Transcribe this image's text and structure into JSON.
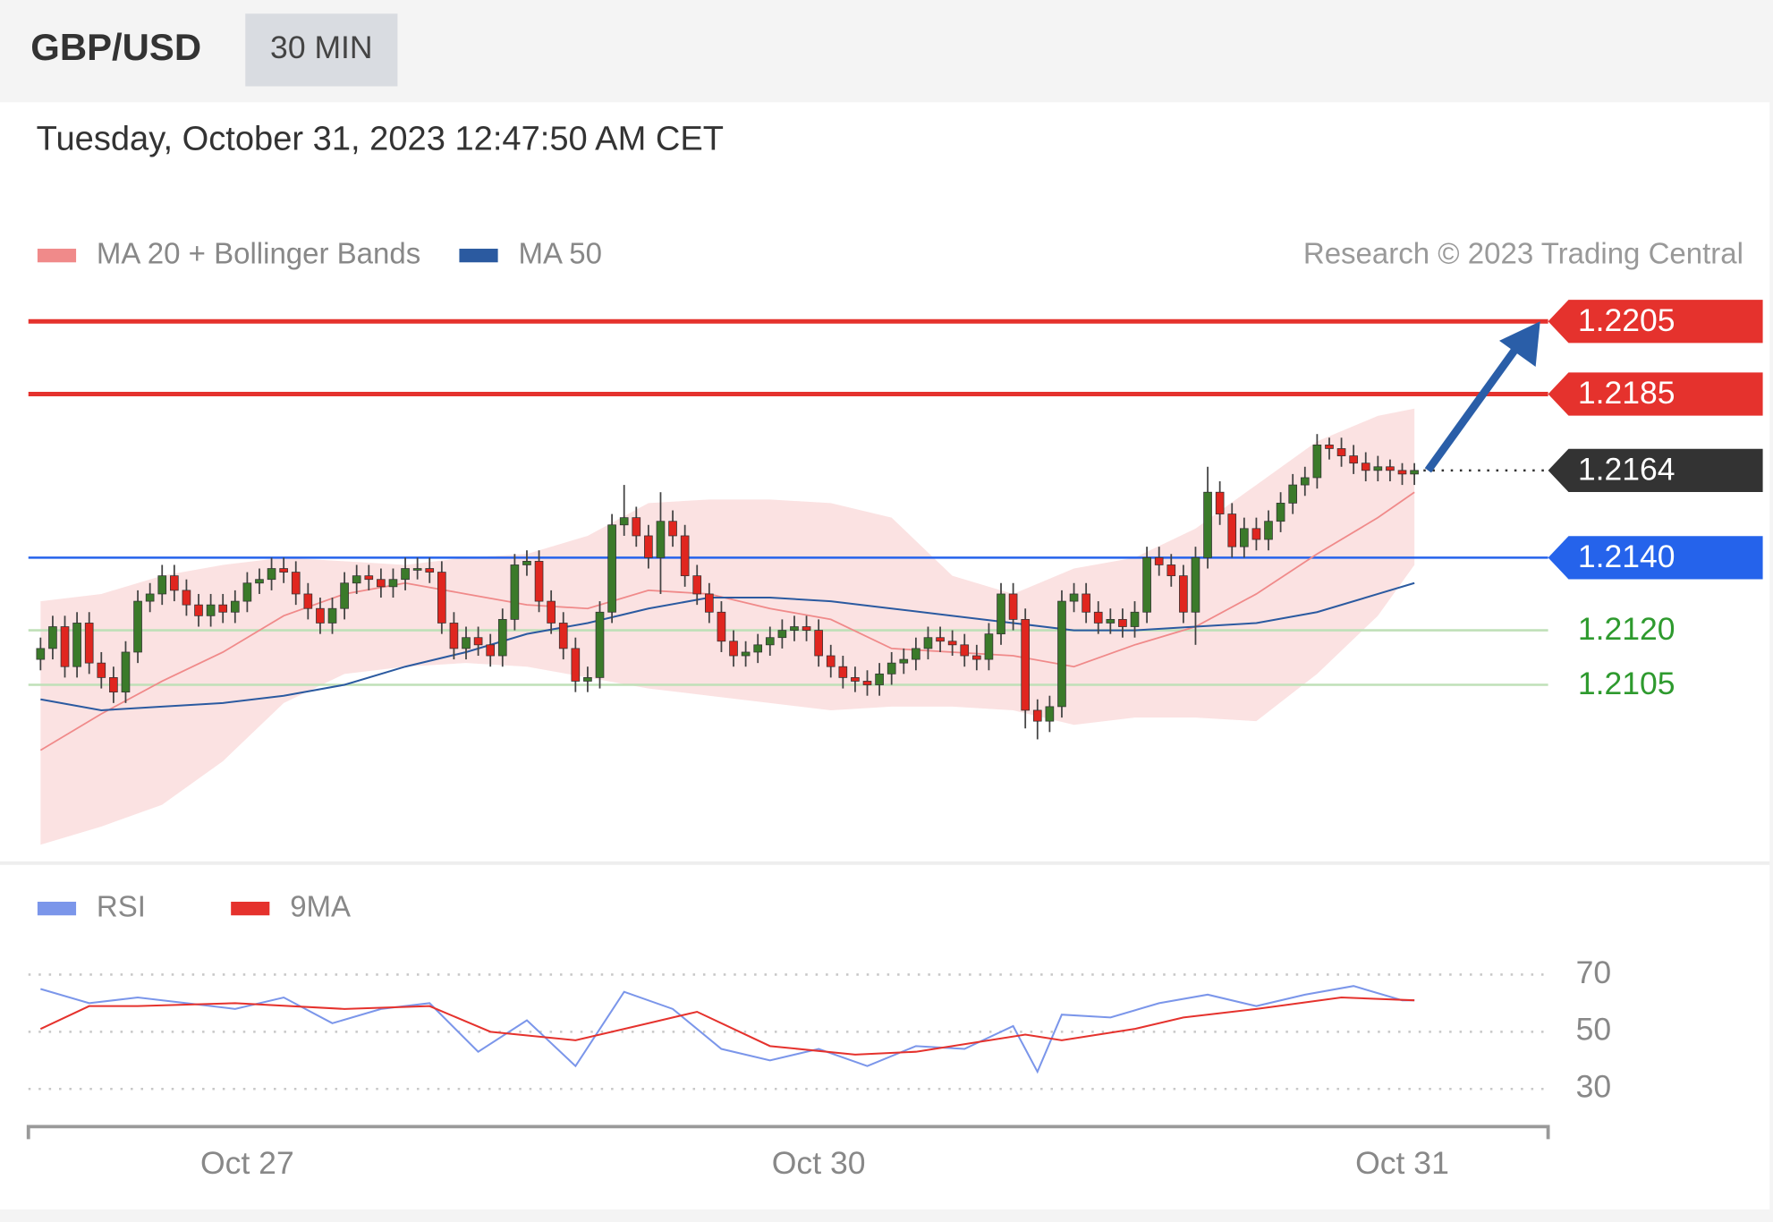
{
  "header": {
    "symbol": "GBP/USD",
    "interval": "30 MIN"
  },
  "timestamp": "Tuesday, October 31, 2023 12:47:50 AM CET",
  "chart_data": [
    {
      "type": "candlestick",
      "copyright": "Research © 2023 Trading Central",
      "up_color": "#3b7a2a",
      "down_color": "#e0261f",
      "wick_color": "#444444",
      "band_color": "#fbe2e2",
      "xlim": [
        0,
        125
      ],
      "ylim": [
        1.206,
        1.2214
      ],
      "x": [
        1,
        2,
        3,
        4,
        5,
        6,
        7,
        8,
        9,
        10,
        11,
        12,
        13,
        14,
        15,
        16,
        17,
        18,
        19,
        20,
        21,
        22,
        23,
        24,
        25,
        26,
        27,
        28,
        29,
        30,
        31,
        32,
        33,
        34,
        35,
        36,
        37,
        38,
        39,
        40,
        41,
        42,
        43,
        44,
        45,
        46,
        47,
        48,
        49,
        50,
        51,
        52,
        53,
        54,
        55,
        56,
        57,
        58,
        59,
        60,
        61,
        62,
        63,
        64,
        65,
        66,
        67,
        68,
        69,
        70,
        71,
        72,
        73,
        74,
        75,
        76,
        77,
        78,
        79,
        80,
        81,
        82,
        83,
        84,
        85,
        86,
        87,
        88,
        89,
        90,
        91,
        92,
        93,
        94,
        95,
        96,
        97,
        98,
        99,
        100,
        101,
        102,
        103,
        104,
        105,
        106,
        107,
        108,
        109,
        110,
        111,
        112,
        113,
        114
      ],
      "open": [
        1.2112,
        1.2115,
        1.2121,
        1.211,
        1.2122,
        1.2111,
        1.2107,
        1.2103,
        1.2114,
        1.2128,
        1.213,
        1.2135,
        1.2131,
        1.2127,
        1.2124,
        1.2127,
        1.2125,
        1.2128,
        1.2133,
        1.2134,
        1.2137,
        1.2136,
        1.213,
        1.2126,
        1.2122,
        1.2126,
        1.2133,
        1.2135,
        1.2134,
        1.2132,
        1.2134,
        1.2137,
        1.2137,
        1.2136,
        1.2122,
        1.2115,
        1.2118,
        1.2116,
        1.2113,
        1.2123,
        1.2138,
        1.2139,
        1.2128,
        1.2122,
        1.2115,
        1.2106,
        1.2107,
        1.2125,
        1.2149,
        1.2151,
        1.2146,
        1.214,
        1.215,
        1.2146,
        1.2135,
        1.213,
        1.2125,
        1.2117,
        1.2113,
        1.2114,
        1.2116,
        1.2118,
        1.212,
        1.2121,
        1.212,
        1.2113,
        1.211,
        1.2107,
        1.2106,
        1.2105,
        1.2108,
        1.2111,
        1.2112,
        1.2115,
        1.2118,
        1.2117,
        1.2116,
        1.2113,
        1.2112,
        1.2119,
        1.213,
        1.2123,
        1.2098,
        1.2095,
        1.2099,
        1.2128,
        1.213,
        1.2125,
        1.2122,
        1.2123,
        1.2121,
        1.2125,
        1.214,
        1.2138,
        1.2135,
        1.2125,
        1.214,
        1.2158,
        1.2152,
        1.2143,
        1.2148,
        1.2145,
        1.215,
        1.2155,
        1.216,
        1.2162,
        1.2171,
        1.217,
        1.2168,
        1.2166,
        1.2164,
        1.2165,
        1.2164,
        1.2163
      ],
      "high": [
        1.2118,
        1.2124,
        1.2124,
        1.2125,
        1.2125,
        1.2114,
        1.211,
        1.2117,
        1.2131,
        1.2133,
        1.2138,
        1.2138,
        1.2134,
        1.213,
        1.213,
        1.213,
        1.2131,
        1.2136,
        1.2137,
        1.214,
        1.214,
        1.2139,
        1.2133,
        1.2129,
        1.2129,
        1.2136,
        1.2138,
        1.2138,
        1.2137,
        1.2137,
        1.214,
        1.214,
        1.214,
        1.2139,
        1.2125,
        1.2121,
        1.2121,
        1.2119,
        1.2126,
        1.2141,
        1.2142,
        1.2142,
        1.2131,
        1.2125,
        1.2118,
        1.211,
        1.2128,
        1.2152,
        1.216,
        1.2154,
        1.2149,
        1.2158,
        1.2153,
        1.2149,
        1.2138,
        1.2133,
        1.2128,
        1.212,
        1.2117,
        1.2119,
        1.2121,
        1.2123,
        1.2124,
        1.2124,
        1.2123,
        1.2116,
        1.2113,
        1.211,
        1.2109,
        1.2111,
        1.2114,
        1.2115,
        1.2118,
        1.2121,
        1.2121,
        1.212,
        1.2119,
        1.2116,
        1.2122,
        1.2133,
        1.2133,
        1.2126,
        1.2101,
        1.2102,
        1.2131,
        1.2133,
        1.2133,
        1.2128,
        1.2126,
        1.2126,
        1.2128,
        1.2143,
        1.2143,
        1.2141,
        1.2138,
        1.2143,
        1.2165,
        1.2161,
        1.2155,
        1.2151,
        1.2151,
        1.2153,
        1.2158,
        1.2163,
        1.2165,
        1.2174,
        1.2173,
        1.2173,
        1.2171,
        1.2169,
        1.2168,
        1.2167,
        1.2166,
        1.2166
      ],
      "low": [
        1.2109,
        1.2112,
        1.2107,
        1.2107,
        1.2108,
        1.2104,
        1.21,
        1.21,
        1.2111,
        1.2125,
        1.2127,
        1.2128,
        1.2124,
        1.2121,
        1.2121,
        1.2122,
        1.2122,
        1.2125,
        1.213,
        1.2131,
        1.2133,
        1.2127,
        1.2123,
        1.2119,
        1.2119,
        1.2123,
        1.213,
        1.2131,
        1.2129,
        1.2129,
        1.2131,
        1.2134,
        1.2133,
        1.2119,
        1.2112,
        1.2112,
        1.2113,
        1.211,
        1.211,
        1.212,
        1.2135,
        1.2125,
        1.2119,
        1.2112,
        1.2103,
        1.2103,
        1.2104,
        1.2122,
        1.2146,
        1.2143,
        1.2137,
        1.213,
        1.2143,
        1.2132,
        1.2127,
        1.2122,
        1.2114,
        1.211,
        1.211,
        1.2111,
        1.2113,
        1.2115,
        1.2117,
        1.2117,
        1.211,
        1.2107,
        1.2104,
        1.2103,
        1.2102,
        1.2102,
        1.2105,
        1.2108,
        1.2109,
        1.2112,
        1.2114,
        1.2113,
        1.211,
        1.2109,
        1.2109,
        1.2116,
        1.212,
        1.2093,
        1.209,
        1.2092,
        1.2096,
        1.2125,
        1.2122,
        1.2119,
        1.2119,
        1.2118,
        1.2118,
        1.2122,
        1.2135,
        1.2132,
        1.2122,
        1.2116,
        1.2137,
        1.2149,
        1.214,
        1.214,
        1.2142,
        1.2142,
        1.2147,
        1.2152,
        1.2157,
        1.2159,
        1.2167,
        1.2165,
        1.2163,
        1.2161,
        1.2161,
        1.2161,
        1.216,
        1.216
      ],
      "close": [
        1.2115,
        1.2121,
        1.211,
        1.2122,
        1.2111,
        1.2107,
        1.2103,
        1.2114,
        1.2128,
        1.213,
        1.2135,
        1.2131,
        1.2127,
        1.2124,
        1.2127,
        1.2125,
        1.2128,
        1.2133,
        1.2134,
        1.2137,
        1.2136,
        1.213,
        1.2126,
        1.2122,
        1.2126,
        1.2133,
        1.2135,
        1.2134,
        1.2132,
        1.2134,
        1.2137,
        1.2137,
        1.2136,
        1.2122,
        1.2115,
        1.2118,
        1.2116,
        1.2113,
        1.2123,
        1.2138,
        1.2139,
        1.2128,
        1.2122,
        1.2115,
        1.2106,
        1.2107,
        1.2125,
        1.2149,
        1.2151,
        1.2146,
        1.214,
        1.215,
        1.2146,
        1.2135,
        1.213,
        1.2125,
        1.2117,
        1.2113,
        1.2114,
        1.2116,
        1.2118,
        1.212,
        1.2121,
        1.212,
        1.2113,
        1.211,
        1.2107,
        1.2106,
        1.2105,
        1.2108,
        1.2111,
        1.2112,
        1.2115,
        1.2118,
        1.2117,
        1.2116,
        1.2113,
        1.2112,
        1.2119,
        1.213,
        1.2123,
        1.2098,
        1.2095,
        1.2099,
        1.2128,
        1.213,
        1.2125,
        1.2122,
        1.2123,
        1.2121,
        1.2125,
        1.214,
        1.2138,
        1.2135,
        1.2125,
        1.214,
        1.2158,
        1.2152,
        1.2143,
        1.2148,
        1.2145,
        1.215,
        1.2155,
        1.216,
        1.2162,
        1.2171,
        1.217,
        1.2168,
        1.2166,
        1.2164,
        1.2165,
        1.2164,
        1.2163,
        1.2164
      ],
      "series": [
        {
          "name": "MA 20 + Bollinger Bands",
          "color": "#f08a8a",
          "x": [
            1,
            6,
            11,
            16,
            21,
            26,
            31,
            36,
            41,
            46,
            51,
            56,
            61,
            66,
            71,
            76,
            81,
            86,
            91,
            96,
            101,
            106,
            111,
            114
          ],
          "values": [
            1.2087,
            1.2097,
            1.2106,
            1.2114,
            1.2124,
            1.213,
            1.2133,
            1.213,
            1.2127,
            1.2126,
            1.2131,
            1.213,
            1.2126,
            1.2123,
            1.2115,
            1.2114,
            1.2113,
            1.211,
            1.2116,
            1.2121,
            1.213,
            1.2141,
            1.2151,
            1.2158
          ],
          "upper": [
            1.2128,
            1.213,
            1.2135,
            1.2138,
            1.214,
            1.2139,
            1.2138,
            1.214,
            1.2141,
            1.2146,
            1.2155,
            1.2156,
            1.2156,
            1.2155,
            1.2151,
            1.2135,
            1.213,
            1.2137,
            1.214,
            1.2148,
            1.216,
            1.2172,
            1.2179,
            1.2181
          ],
          "lower": [
            1.2061,
            1.2066,
            1.2072,
            1.2084,
            1.21,
            1.2108,
            1.211,
            1.2111,
            1.211,
            1.2107,
            1.2104,
            1.2102,
            1.21,
            1.2098,
            1.2099,
            1.2099,
            1.2098,
            1.2094,
            1.2096,
            1.2096,
            1.2095,
            1.2108,
            1.2124,
            1.2138
          ]
        },
        {
          "name": "MA 50",
          "color": "#2b5aa0",
          "x": [
            1,
            6,
            11,
            16,
            21,
            26,
            31,
            36,
            41,
            46,
            51,
            56,
            61,
            66,
            71,
            76,
            81,
            86,
            91,
            96,
            101,
            106,
            111,
            114
          ],
          "values": [
            1.2101,
            1.2098,
            1.2099,
            1.21,
            1.2102,
            1.2105,
            1.211,
            1.2114,
            1.2119,
            1.2122,
            1.2126,
            1.2129,
            1.2129,
            1.2128,
            1.2126,
            1.2124,
            1.2122,
            1.212,
            1.212,
            1.2121,
            1.2122,
            1.2125,
            1.213,
            1.2133
          ]
        }
      ],
      "levels": [
        {
          "value": 1.2205,
          "label": "1.2205",
          "color": "#e5322d",
          "badge": true,
          "dashed": false
        },
        {
          "value": 1.2185,
          "label": "1.2185",
          "color": "#e5322d",
          "badge": true,
          "dashed": false
        },
        {
          "value": 1.2164,
          "label": "1.2164",
          "color": "#333333",
          "badge": true,
          "dashed": true
        },
        {
          "value": 1.214,
          "label": "1.2140",
          "color": "#2563eb",
          "badge": true,
          "dashed": false
        },
        {
          "value": 1.212,
          "label": "1.2120",
          "color": "#2e9a2e",
          "badge": false,
          "dashed": false
        },
        {
          "value": 1.2105,
          "label": "1.2105",
          "color": "#2e9a2e",
          "badge": false,
          "dashed": false
        }
      ]
    },
    {
      "type": "line",
      "xlim": [
        0,
        125
      ],
      "xticks": [
        {
          "value": 18,
          "label": "Oct 27"
        },
        {
          "value": 65,
          "label": "Oct 30"
        },
        {
          "value": 113,
          "label": "Oct 31"
        }
      ],
      "ylim": [
        20,
        80
      ],
      "yticks": [
        30,
        50,
        70
      ],
      "grid": true,
      "series": [
        {
          "name": "RSI",
          "color": "#7b96ea",
          "x": [
            1,
            5,
            9,
            13,
            17,
            21,
            25,
            29,
            33,
            37,
            41,
            45,
            49,
            53,
            57,
            61,
            65,
            69,
            73,
            77,
            81,
            83,
            85,
            89,
            93,
            97,
            101,
            105,
            109,
            113,
            114
          ],
          "values": [
            65,
            60,
            62,
            60,
            58,
            62,
            53,
            58,
            60,
            43,
            54,
            38,
            64,
            58,
            44,
            40,
            44,
            38,
            45,
            44,
            52,
            36,
            56,
            55,
            60,
            63,
            59,
            63,
            66,
            61,
            61
          ]
        },
        {
          "name": "9MA",
          "color": "#e5322d",
          "x": [
            1,
            5,
            9,
            17,
            26,
            33,
            38,
            45,
            50,
            55,
            61,
            68,
            73,
            82,
            85,
            91,
            95,
            101,
            108,
            114
          ],
          "values": [
            51,
            59,
            59,
            60,
            58,
            59,
            50,
            47,
            52,
            57,
            45,
            42,
            43,
            49,
            47,
            51,
            55,
            58,
            62,
            61
          ]
        }
      ]
    }
  ]
}
